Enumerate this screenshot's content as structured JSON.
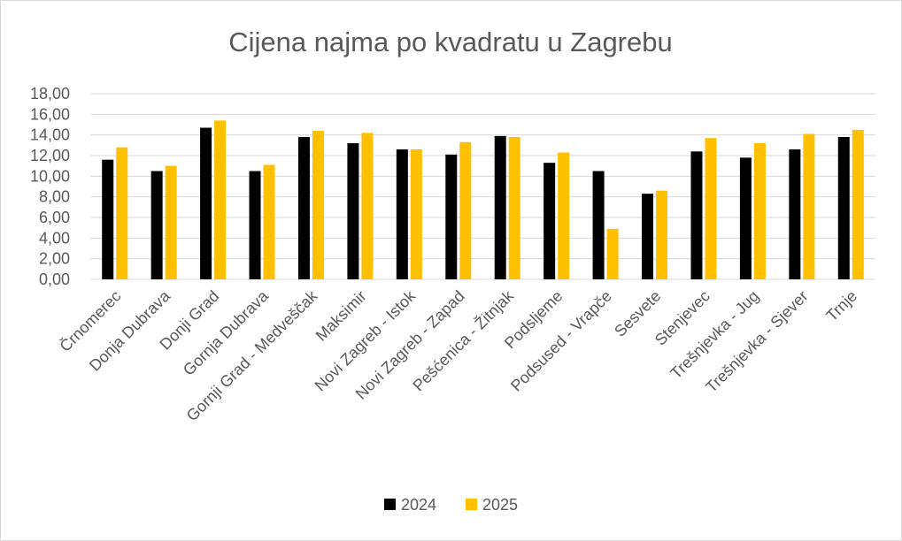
{
  "chart_data": {
    "type": "bar",
    "title": "Cijena najma po kvadratu u Zagrebu",
    "xlabel": "",
    "ylabel": "",
    "ylim": [
      0,
      18
    ],
    "yticks": [
      "0,00",
      "2,00",
      "4,00",
      "6,00",
      "8,00",
      "10,00",
      "12,00",
      "14,00",
      "16,00",
      "18,00"
    ],
    "grid": true,
    "legend": "bottom",
    "categories": [
      "Črnomerec",
      "Donja Dubrava",
      "Donji Grad",
      "Gornja Dubrava",
      "Gornji Grad - Medveščak",
      "Maksimir",
      "Novi Zagreb - Istok",
      "Novi Zagreb - Zapad",
      "Pešćenica - Žitnjak",
      "Podsljeme",
      "Podsused - Vrapče",
      "Sesvete",
      "Stenjevec",
      "Trešnjevka - Jug",
      "Trešnjevka - Sjever",
      "Trnje"
    ],
    "series": [
      {
        "name": "2024",
        "color": "#000000",
        "values": [
          11.6,
          10.5,
          14.7,
          10.5,
          13.8,
          13.2,
          12.6,
          12.1,
          13.9,
          11.3,
          10.5,
          8.3,
          12.4,
          11.8,
          12.6,
          13.8
        ]
      },
      {
        "name": "2025",
        "color": "#ffc000",
        "values": [
          12.8,
          11.0,
          15.4,
          11.1,
          14.4,
          14.2,
          12.6,
          13.3,
          13.8,
          12.3,
          4.9,
          8.6,
          13.7,
          13.2,
          14.1,
          14.5
        ]
      }
    ]
  }
}
